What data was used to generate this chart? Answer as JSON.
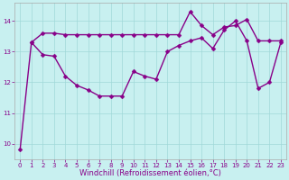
{
  "line1_x": [
    0,
    1,
    2,
    3,
    4,
    5,
    6,
    7,
    8,
    9,
    10,
    11,
    12,
    13,
    14,
    15,
    16,
    17,
    18,
    19,
    20,
    21,
    22,
    23
  ],
  "line1_y": [
    9.8,
    13.3,
    12.9,
    12.85,
    12.2,
    11.9,
    11.75,
    11.55,
    11.55,
    11.55,
    12.35,
    12.2,
    12.1,
    13.0,
    13.2,
    13.35,
    13.45,
    13.1,
    13.7,
    14.0,
    13.35,
    11.8,
    12.0,
    13.3
  ],
  "line2_x": [
    1,
    2,
    3,
    4,
    5,
    6,
    7,
    8,
    9,
    10,
    11,
    12,
    13,
    14,
    15,
    16,
    17,
    18,
    19,
    20,
    21,
    22,
    23
  ],
  "line2_y": [
    13.3,
    13.6,
    13.6,
    13.55,
    13.55,
    13.55,
    13.55,
    13.55,
    13.55,
    13.55,
    13.55,
    13.55,
    13.55,
    13.55,
    14.3,
    13.85,
    13.55,
    13.8,
    13.85,
    14.05,
    13.35,
    13.35,
    13.35
  ],
  "color": "#880088",
  "xlabel": "Windchill (Refroidissement éolien,°C)",
  "xlim_min": -0.5,
  "xlim_max": 23.5,
  "ylim_min": 9.5,
  "ylim_max": 14.6,
  "yticks": [
    10,
    11,
    12,
    13,
    14
  ],
  "xticks": [
    0,
    1,
    2,
    3,
    4,
    5,
    6,
    7,
    8,
    9,
    10,
    11,
    12,
    13,
    14,
    15,
    16,
    17,
    18,
    19,
    20,
    21,
    22,
    23
  ],
  "bg_color": "#c8f0f0",
  "grid_color": "#a0d8d8",
  "markersize": 2.5,
  "linewidth": 1.0,
  "tick_fontsize": 5.0,
  "xlabel_fontsize": 6.0
}
